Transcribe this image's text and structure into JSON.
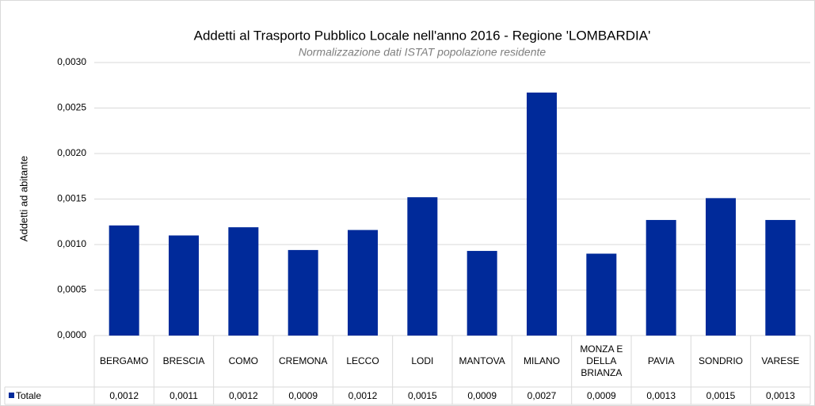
{
  "chart_data": {
    "type": "bar",
    "title": "Addetti al Trasporto Pubblico Locale nell'anno 2016 - Regione 'LOMBARDIA'",
    "subtitle": "Normalizzazione dati ISTAT popolazione residente",
    "y_label": "Addetti ad abitante",
    "categories": [
      "BERGAMO",
      "BRESCIA",
      "COMO",
      "CREMONA",
      "LECCO",
      "LODI",
      "MANTOVA",
      "MILANO",
      "MONZA E DELLA BRIANZA",
      "PAVIA",
      "SONDRIO",
      "VARESE"
    ],
    "series": [
      {
        "name": "Totale",
        "color": "#002a9a",
        "values": [
          0.00121,
          0.0011,
          0.00119,
          0.00094,
          0.00116,
          0.00152,
          0.00093,
          0.00267,
          0.0009,
          0.00127,
          0.00151,
          0.00127
        ],
        "value_labels": [
          "0,0012",
          "0,0011",
          "0,0012",
          "0,0009",
          "0,0012",
          "0,0015",
          "0,0009",
          "0,0027",
          "0,0009",
          "0,0013",
          "0,0015",
          "0,0013"
        ]
      }
    ],
    "ylim": [
      0,
      0.003
    ],
    "yticks": [
      {
        "value": 0,
        "label": "0,0000"
      },
      {
        "value": 0.0005,
        "label": "0,0005"
      },
      {
        "value": 0.001,
        "label": "0,0010"
      },
      {
        "value": 0.0015,
        "label": "0,0015"
      },
      {
        "value": 0.002,
        "label": "0,0020"
      },
      {
        "value": 0.0025,
        "label": "0,0025"
      },
      {
        "value": 0.003,
        "label": "0,0030"
      }
    ],
    "grid": true
  }
}
